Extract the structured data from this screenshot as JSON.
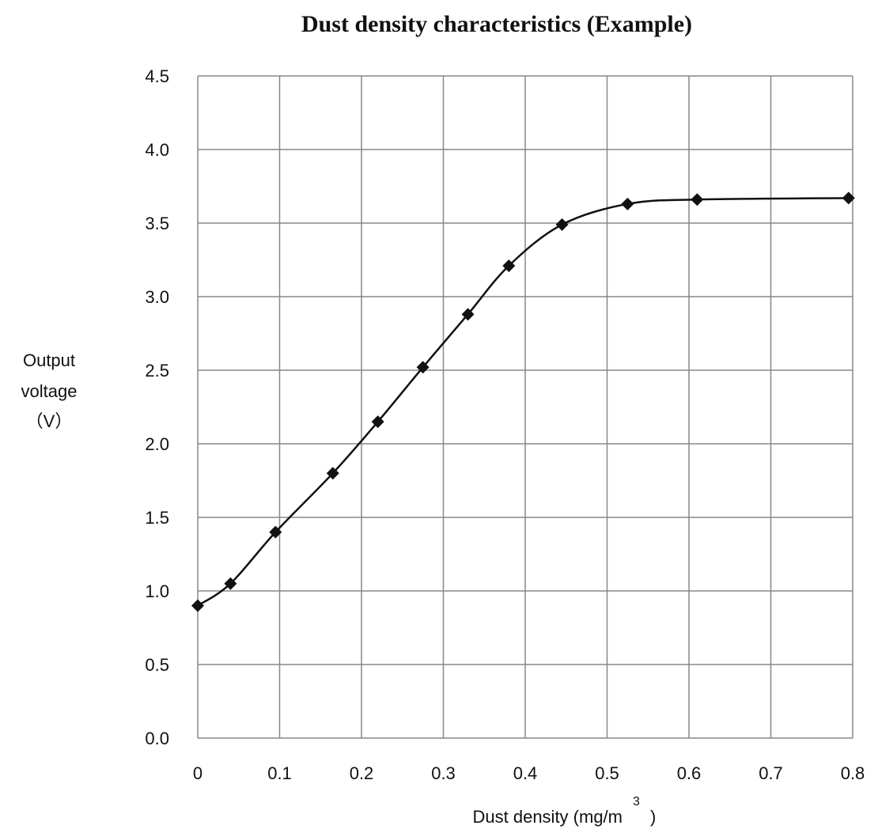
{
  "chart_data": {
    "type": "line",
    "title": "Dust density characteristics (Example)",
    "xlabel": "Dust density (mg/m",
    "xlabel_superscript": "3",
    "xlabel_suffix": ")",
    "ylabel_lines": [
      "Output",
      "voltage",
      "（V）"
    ],
    "xlim": [
      0,
      0.8
    ],
    "ylim": [
      0,
      4.5
    ],
    "x_ticks": [
      "0",
      "0.1",
      "0.2",
      "0.3",
      "0.4",
      "0.5",
      "0.6",
      "0.7",
      "0.8"
    ],
    "y_ticks": [
      "0.0",
      "0.5",
      "1.0",
      "1.5",
      "2.0",
      "2.5",
      "3.0",
      "3.5",
      "4.0",
      "4.5"
    ],
    "grid": true,
    "marker": "diamond",
    "line_color": "#111111",
    "grid_color": "#888888",
    "series": [
      {
        "x": [
          0.0,
          0.04,
          0.095,
          0.165,
          0.22,
          0.275,
          0.33,
          0.38,
          0.445,
          0.525,
          0.61,
          0.795
        ],
        "y": [
          0.9,
          1.05,
          1.4,
          1.8,
          2.15,
          2.52,
          2.88,
          3.21,
          3.49,
          3.63,
          3.66,
          3.67
        ]
      }
    ]
  }
}
